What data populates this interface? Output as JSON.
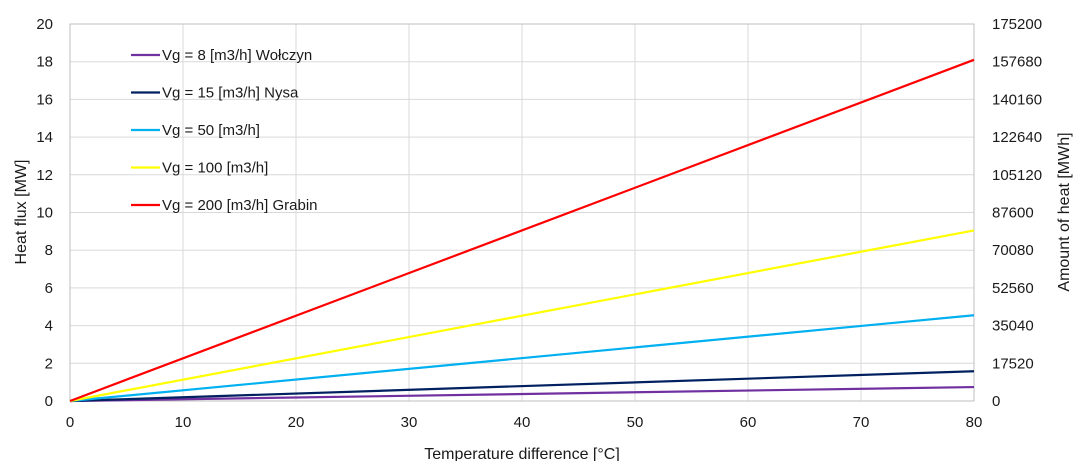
{
  "chart_data": {
    "type": "line",
    "xlabel": "Temperature difference [°C]",
    "ylabel": "Heat flux [MW]",
    "y2label": "Amount of heat [MWh]",
    "xlim": [
      0,
      80
    ],
    "ylim": [
      0,
      20
    ],
    "y2lim": [
      0,
      175200
    ],
    "x_ticks": [
      0,
      10,
      20,
      30,
      40,
      50,
      60,
      70,
      80
    ],
    "y_ticks": [
      0,
      2,
      4,
      6,
      8,
      10,
      12,
      14,
      16,
      18,
      20
    ],
    "y2_ticks": [
      0,
      17520,
      35040,
      52560,
      70080,
      87600,
      105120,
      122640,
      140160,
      157680,
      175200
    ],
    "grid": true,
    "legend_position": "top-left",
    "series": [
      {
        "name": "Vg = 8 [m3/h] Wołczyn",
        "color": "#7030a0",
        "x": [
          0,
          80
        ],
        "y": [
          0,
          0.74
        ]
      },
      {
        "name": "Vg = 15 [m3/h] Nysa",
        "color": "#002060",
        "x": [
          0,
          80
        ],
        "y": [
          0,
          1.58
        ]
      },
      {
        "name": "Vg = 50 [m3/h]",
        "color": "#00b0f0",
        "x": [
          0,
          80
        ],
        "y": [
          0,
          4.55
        ]
      },
      {
        "name": "Vg = 100 [m3/h]",
        "color": "#ffff00",
        "x": [
          0,
          80
        ],
        "y": [
          0,
          9.05
        ]
      },
      {
        "name": "Vg = 200 [m3/h] Grabin",
        "color": "#ff0000",
        "x": [
          0,
          80
        ],
        "y": [
          0,
          18.1
        ]
      }
    ]
  }
}
